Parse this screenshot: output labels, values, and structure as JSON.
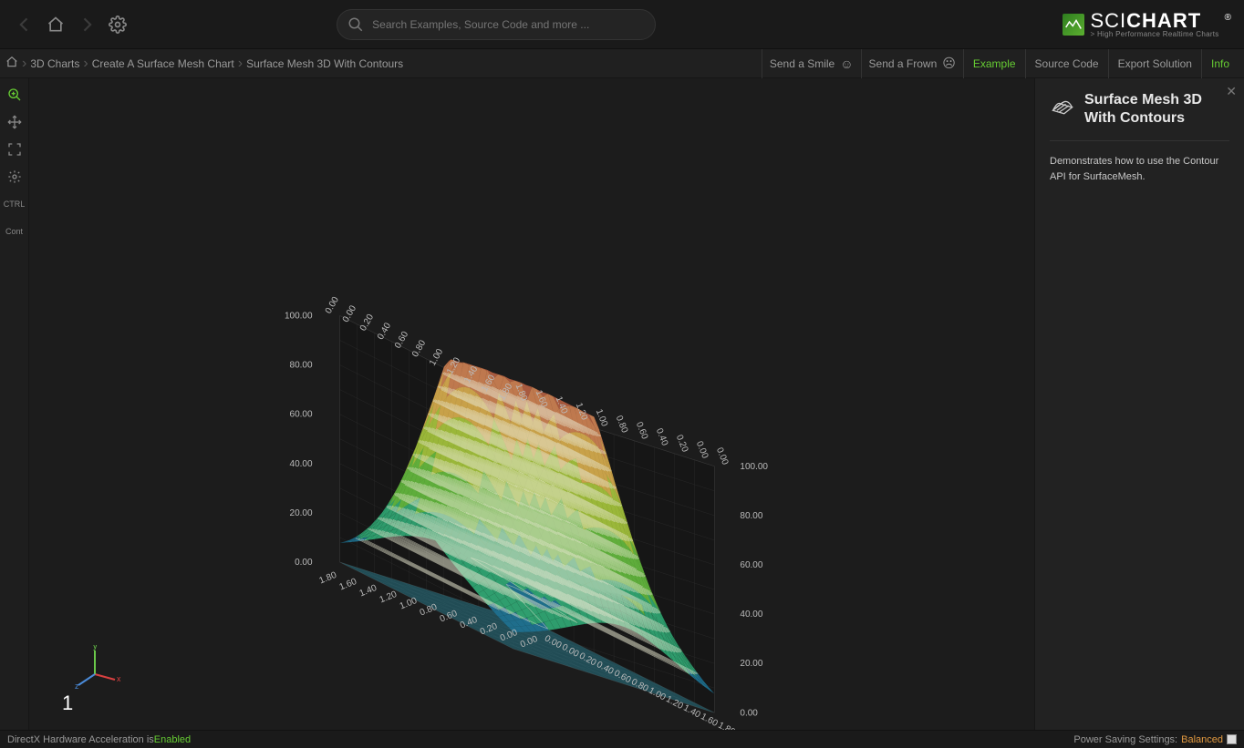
{
  "search": {
    "placeholder": "Search Examples, Source Code and more ..."
  },
  "logo": {
    "main": "SCI",
    "main_bold": "CHART",
    "sub": "> High Performance Realtime Charts"
  },
  "breadcrumbs": [
    "3D Charts",
    "Create A Surface Mesh Chart",
    "Surface Mesh 3D With Contours"
  ],
  "feedback": {
    "smile": "Send a Smile",
    "frown": "Send a Frown"
  },
  "tabs": {
    "example": "Example",
    "source": "Source Code",
    "export": "Export Solution",
    "info": "Info"
  },
  "tools": {
    "ctrl": "CTRL",
    "cont": "Cont"
  },
  "info_panel": {
    "title": "Surface Mesh 3D With Contours",
    "description": "Demonstrates how to use the Contour API for SurfaceMesh."
  },
  "status": {
    "left_label": "DirectX Hardware Acceleration is ",
    "left_value": "Enabled",
    "right_label": "Power Saving Settings: ",
    "right_value": "Balanced"
  },
  "chart": {
    "fps_counter": "1",
    "y_ticks": [
      "0.00",
      "20.00",
      "40.00",
      "60.00",
      "80.00",
      "100.00"
    ],
    "x_ticks": [
      "0.00",
      "0.00",
      "0.20",
      "0.40",
      "0.60",
      "0.80",
      "1.00",
      "1.20",
      "1.40",
      "1.60",
      "1.80"
    ],
    "z_ticks": [
      "0.00",
      "0.00",
      "0.20",
      "0.40",
      "0.60",
      "0.80",
      "1.00",
      "1.20",
      "1.40",
      "1.60",
      "1.80"
    ],
    "color_stops": [
      {
        "t": 0.0,
        "color": "#1f6e8c"
      },
      {
        "t": 0.15,
        "color": "#2f9e6e"
      },
      {
        "t": 0.35,
        "color": "#5fae3c"
      },
      {
        "t": 0.55,
        "color": "#9bb83a"
      },
      {
        "t": 0.75,
        "color": "#c9a24a"
      },
      {
        "t": 0.9,
        "color": "#c07a4f"
      },
      {
        "t": 1.0,
        "color": "#a85a3f"
      }
    ],
    "contour_color": "#e8e8d0",
    "grid_color": "#3a3a3a",
    "axis_label_color": "#bbbbbb",
    "background_color": "#1c1c1c",
    "ylim": [
      0,
      100
    ],
    "xz_lim": [
      0,
      2.0
    ],
    "gizmo": {
      "x_color": "#d84040",
      "y_color": "#6ac84a",
      "z_color": "#4a8ad8"
    }
  }
}
